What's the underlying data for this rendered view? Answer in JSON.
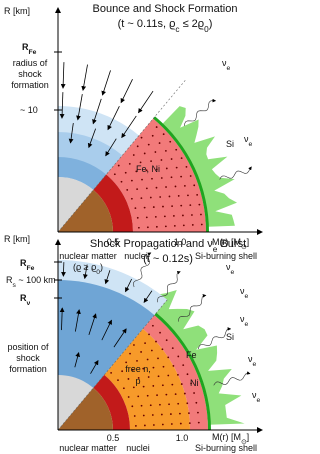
{
  "panels": [
    {
      "title": [
        "Bounce and Shock Formation"
      ],
      "subtitle": [
        "(t ~ 0.11s, ϱ",
        "c",
        " ≤ 2ϱ",
        "0",
        ")"
      ],
      "y_axis": [
        "R [km]"
      ],
      "x_axis": [
        "M(r) [M",
        "⊙",
        "]"
      ],
      "x_ticks": [
        [
          "0.5"
        ],
        [
          "1.0"
        ]
      ],
      "r_fe": [
        "R",
        "Fe"
      ],
      "shock_radius": [
        [
          "radius of"
        ],
        [
          "shock"
        ],
        [
          "formation"
        ]
      ],
      "radius_value": [
        "~ 10"
      ],
      "iron_region": [
        "Fe, Ni"
      ],
      "silicon": [
        "Si"
      ],
      "neutrinos": [
        [
          "ν",
          "e"
        ],
        [
          "ν",
          "e"
        ]
      ],
      "nuclear_matter": [
        "nuclear matter"
      ],
      "density": [
        "(ϱ ≥ ϱ",
        "0",
        ")"
      ],
      "nuclei": [
        "nuclei"
      ],
      "si_shell": [
        "Si-burning shell"
      ]
    },
    {
      "title": [
        "Shock Propagation and ν",
        "e",
        " Burst"
      ],
      "subtitle": [
        "(t ~ 0.12s)"
      ],
      "y_axis": [
        "R [km]"
      ],
      "x_axis": [
        "M(r) [M",
        "⊙",
        "]"
      ],
      "x_ticks": [
        [
          "0.5"
        ],
        [
          "1.0"
        ]
      ],
      "r_fe": [
        "R",
        "Fe"
      ],
      "r_shock": [
        "R",
        "s",
        " ~ 100 km"
      ],
      "r_nu": [
        "R",
        "ν"
      ],
      "shock_position": [
        [
          "position of"
        ],
        [
          "shock"
        ],
        [
          "formation"
        ]
      ],
      "free_nucleons": [
        [
          "free n,"
        ],
        [
          "p"
        ]
      ],
      "iron": [
        "Fe"
      ],
      "nickel": [
        "Ni"
      ],
      "silicon": [
        "Si"
      ],
      "neutrinos": [
        [
          "ν",
          "e"
        ],
        [
          "ν",
          "e"
        ],
        [
          "ν",
          "e"
        ],
        [
          "ν",
          "e"
        ],
        [
          "ν",
          "e"
        ]
      ],
      "nuclear_matter": [
        "nuclear matter"
      ],
      "nuclei": [
        "nuclei"
      ],
      "si_shell": [
        "Si-burning shell"
      ]
    }
  ]
}
